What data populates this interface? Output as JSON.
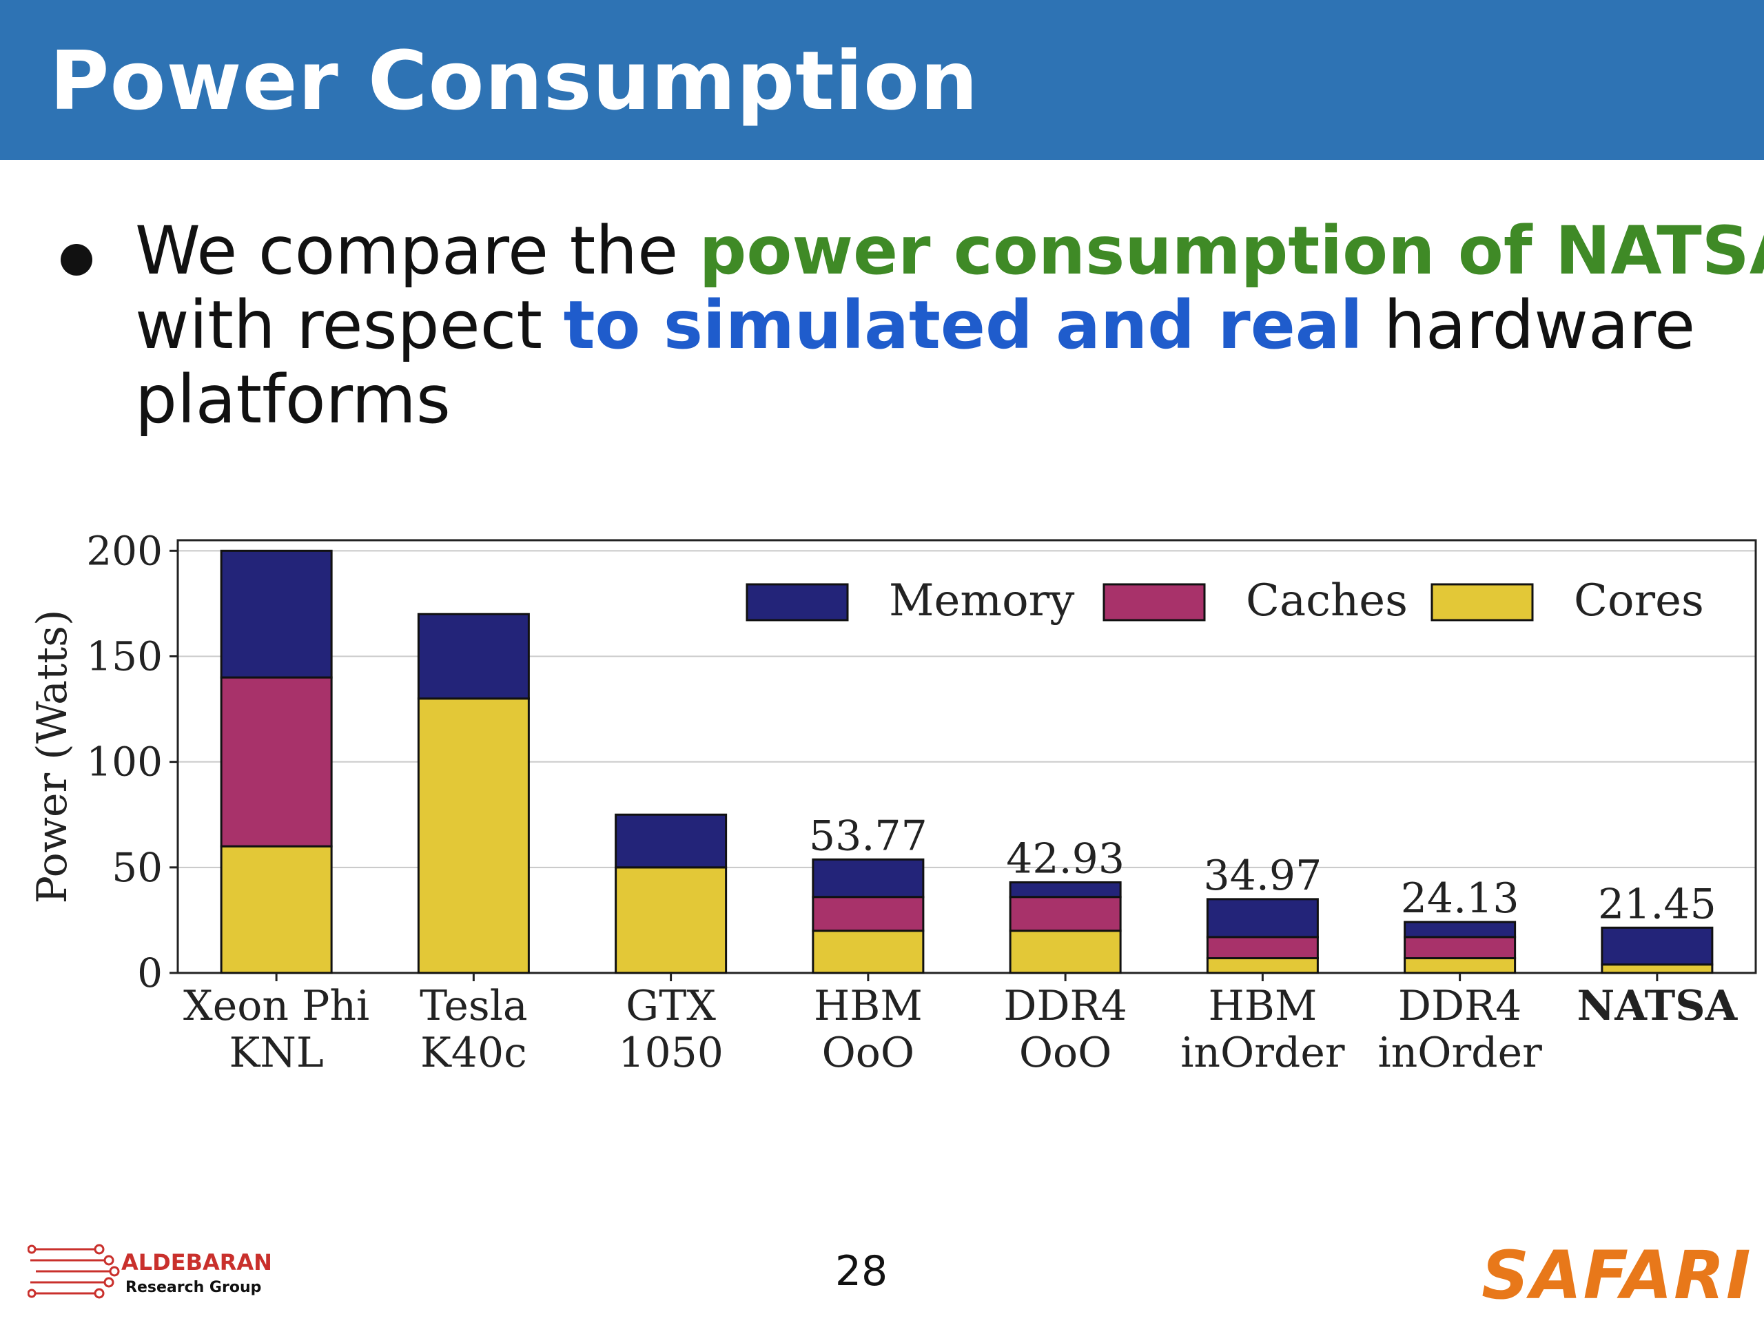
{
  "slide": {
    "title": "Power Consumption",
    "bullet": {
      "part1": "We compare the ",
      "part2": "power consumption of NATSA",
      "part3": "with respect ",
      "part4": "to simulated and real",
      "part5": " hardware",
      "part6": "platforms"
    },
    "page_number": "28"
  },
  "footer": {
    "left_logo_name": "ALDEBARAN",
    "left_logo_sub": "Research Group",
    "right_logo": "SAFARI"
  },
  "colors": {
    "title_bar": "#2e73b4",
    "memory": "#232479",
    "caches": "#a8326a",
    "cores": "#e3c837",
    "highlight_green": "#3f8a26",
    "highlight_blue": "#1f5ccc",
    "safari": "#e8781a",
    "aldebaran": "#c9302c"
  },
  "chart_data": {
    "type": "bar",
    "stacked": true,
    "ylabel": "Power (Watts)",
    "ylim": [
      0,
      205
    ],
    "yticks": [
      0,
      50,
      100,
      150,
      200
    ],
    "grid": "horizontal",
    "legend": "top-right",
    "categories": [
      [
        "Xeon Phi",
        "KNL"
      ],
      [
        "Tesla",
        "K40c"
      ],
      [
        "GTX",
        "1050"
      ],
      [
        "HBM",
        "OoO"
      ],
      [
        "DDR4",
        "OoO"
      ],
      [
        "HBM",
        "inOrder"
      ],
      [
        "DDR4",
        "inOrder"
      ],
      [
        "NATSA"
      ]
    ],
    "bold_categories": [
      7
    ],
    "series": [
      {
        "name": "Cores",
        "color": "#e3c837",
        "values": [
          60,
          130,
          50,
          20,
          20,
          7,
          7,
          4
        ]
      },
      {
        "name": "Caches",
        "color": "#a8326a",
        "values": [
          80,
          0,
          0,
          16,
          16,
          10,
          10,
          0
        ]
      },
      {
        "name": "Memory",
        "color": "#232479",
        "values": [
          60,
          40,
          25,
          17.77,
          6.93,
          17.97,
          7.13,
          17.45
        ]
      }
    ],
    "legend_order": [
      "Memory",
      "Caches",
      "Cores"
    ],
    "totals_labels": [
      null,
      null,
      null,
      "53.77",
      "42.93",
      "34.97",
      "24.13",
      "21.45"
    ]
  }
}
